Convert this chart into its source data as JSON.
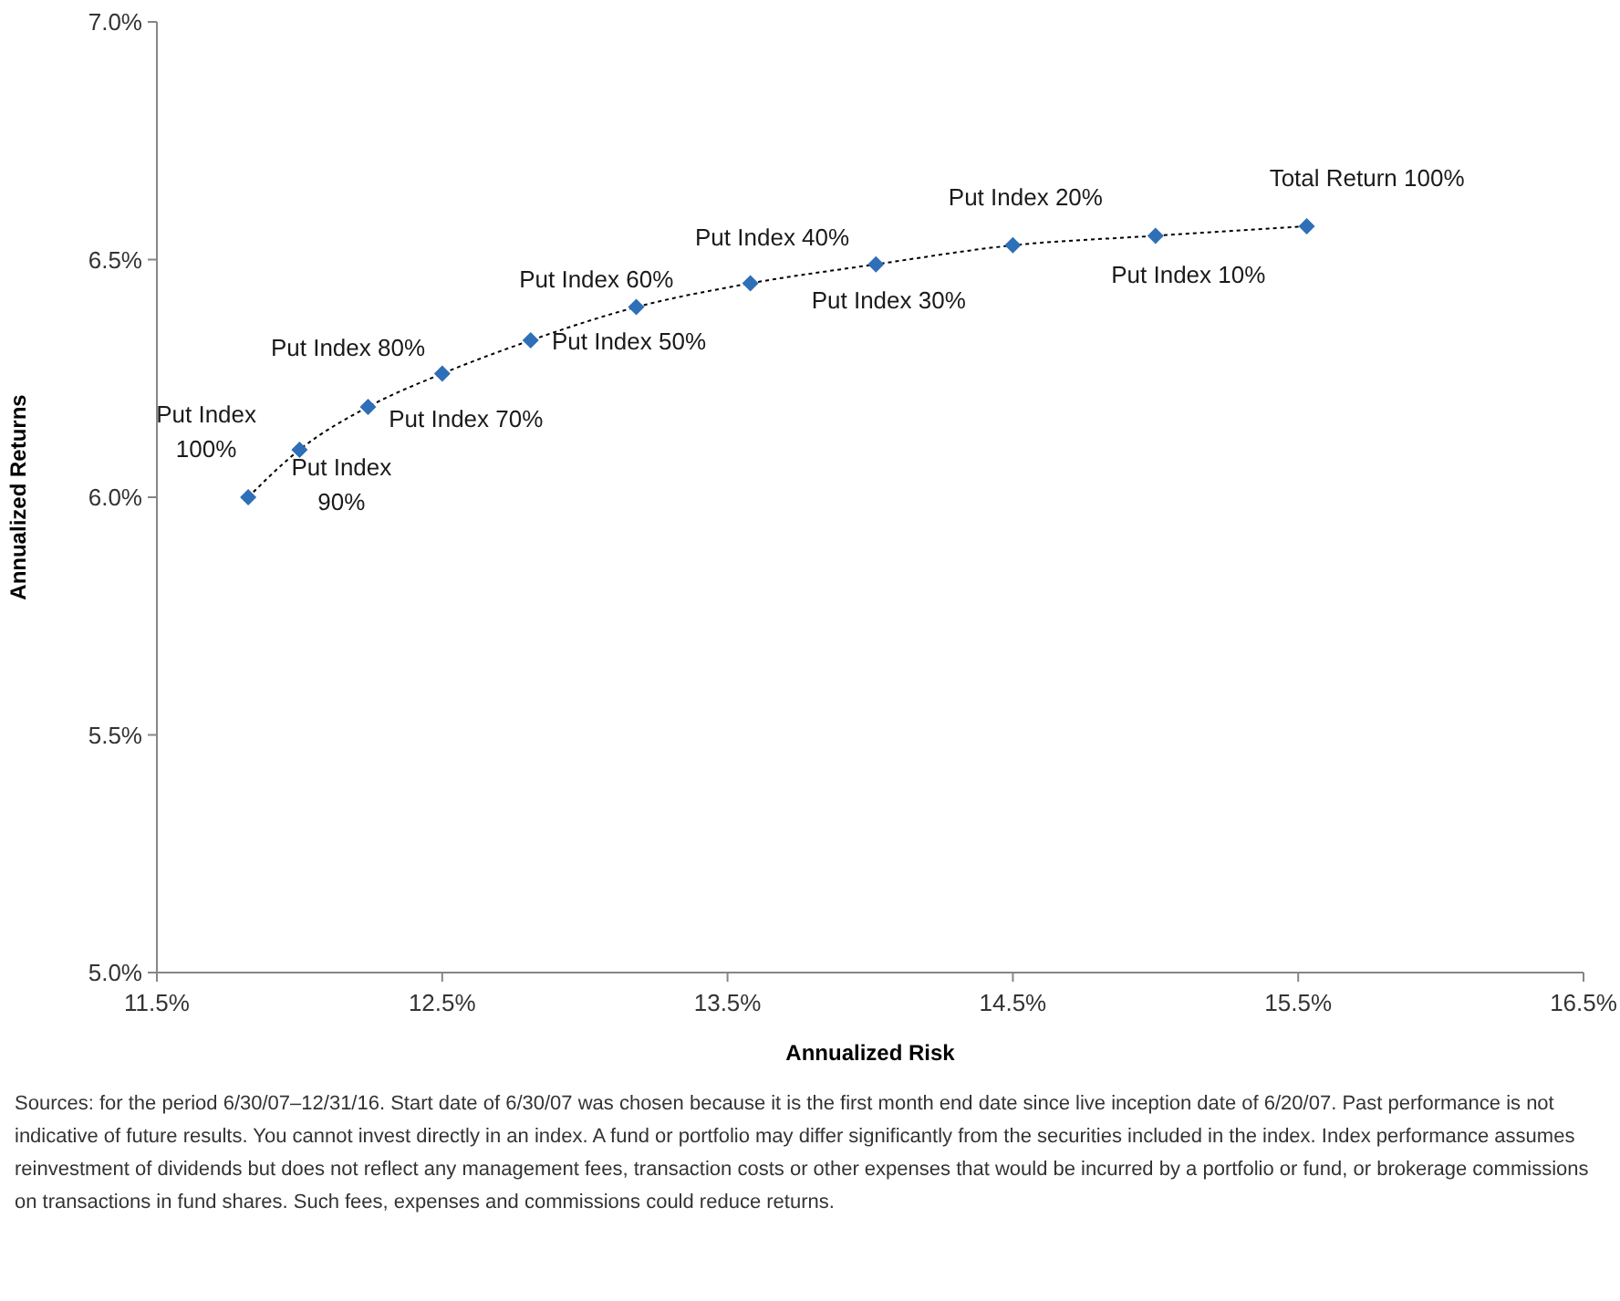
{
  "chart_data": {
    "type": "line",
    "xlabel": "Annualized Risk",
    "ylabel": "Annualized Returns",
    "x": [
      11.82,
      12.0,
      12.24,
      12.5,
      12.81,
      13.18,
      13.58,
      14.02,
      14.5,
      15.0,
      15.53
    ],
    "series": [
      {
        "color": "#2e6fb7",
        "values": [
          6.0,
          6.1,
          6.19,
          6.26,
          6.33,
          6.4,
          6.45,
          6.49,
          6.53,
          6.55,
          6.57
        ]
      }
    ],
    "marker": "diamond",
    "line_style": "dotted",
    "grid": false,
    "xlim": [
      11.5,
      16.5
    ],
    "xticks": [
      {
        "value": 11.5,
        "label": "11.5%"
      },
      {
        "value": 12.5,
        "label": "12.5%"
      },
      {
        "value": 13.5,
        "label": "13.5%"
      },
      {
        "value": 14.5,
        "label": "14.5%"
      },
      {
        "value": 15.5,
        "label": "15.5%"
      },
      {
        "value": 16.5,
        "label": "16.5%"
      }
    ],
    "ylim": [
      5.0,
      7.0
    ],
    "yticks": [
      {
        "value": 5.0,
        "label": "5.0%"
      },
      {
        "value": 5.5,
        "label": "5.5%"
      },
      {
        "value": 6.0,
        "label": "6.0%"
      },
      {
        "value": 6.5,
        "label": "6.5%"
      },
      {
        "value": 7.0,
        "label": "7.0%"
      }
    ],
    "annotations": [
      {
        "text": "Put Index 100%",
        "x": 11.82,
        "y": 6.0
      },
      {
        "text": "Put Index 90%",
        "x": 12.0,
        "y": 6.1
      },
      {
        "text": "Put Index 80%",
        "x": 12.24,
        "y": 6.19
      },
      {
        "text": "Put Index 70%",
        "x": 12.5,
        "y": 6.26
      },
      {
        "text": "Put Index 60%",
        "x": 12.81,
        "y": 6.33
      },
      {
        "text": "Put Index 50%",
        "x": 13.18,
        "y": 6.4
      },
      {
        "text": "Put Index 40%",
        "x": 13.58,
        "y": 6.45
      },
      {
        "text": "Put Index 30%",
        "x": 14.02,
        "y": 6.49
      },
      {
        "text": "Put Index 20%",
        "x": 14.5,
        "y": 6.53
      },
      {
        "text": "Put Index 10%",
        "x": 15.0,
        "y": 6.55
      },
      {
        "text": "Total Return 100%",
        "x": 15.53,
        "y": 6.57
      },
      "Sources: for the period 6/30/07–12/31/16. Start date of 6/30/07 was chosen because it is the first month end date since live inception date of 6/20/07. Past performance is not indicative of future results. You cannot invest directly in an index. A fund or portfolio may differ significantly from the securities included in the index. Index performance assumes reinvestment of dividends but does not reflect any management fees, transaction costs or other expenses that would be incurred by a portfolio or fund, or brokerage commissions on transactions in fund shares. Such fees, expenses and commissions could reduce returns."
    ]
  }
}
